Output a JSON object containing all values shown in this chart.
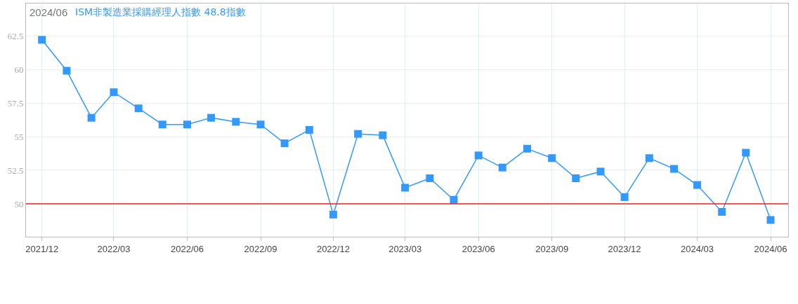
{
  "chart_data": {
    "type": "line",
    "title": "2024/06",
    "subtitle": "ISM非製造業採購經理人指數 48.8指數",
    "x": [
      "2021-12",
      "2022-01",
      "2022-02",
      "2022-03",
      "2022-04",
      "2022-05",
      "2022-06",
      "2022-07",
      "2022-08",
      "2022-09",
      "2022-10",
      "2022-11",
      "2022-12",
      "2023-01",
      "2023-02",
      "2023-03",
      "2023-04",
      "2023-05",
      "2023-06",
      "2023-07",
      "2023-08",
      "2023-09",
      "2023-10",
      "2023-11",
      "2023-12",
      "2024-01",
      "2024-02",
      "2024-03",
      "2024-04",
      "2024-05",
      "2024-06"
    ],
    "series": [
      {
        "color": "#3399ff",
        "values": [
          62.2,
          59.9,
          56.4,
          58.3,
          57.1,
          55.9,
          55.9,
          56.4,
          56.1,
          55.9,
          54.5,
          55.5,
          49.2,
          55.2,
          55.1,
          51.2,
          51.9,
          50.3,
          53.6,
          52.7,
          54.1,
          53.4,
          51.9,
          52.4,
          50.5,
          53.4,
          52.6,
          51.4,
          49.4,
          53.8,
          48.8
        ]
      }
    ],
    "xlim": [
      "2021-11-11",
      "2024-06-23"
    ],
    "xticks": [
      {
        "value": "2021-12",
        "label": "2021/12"
      },
      {
        "value": "2022-03",
        "label": "2022/03"
      },
      {
        "value": "2022-06",
        "label": "2022/06"
      },
      {
        "value": "2022-09",
        "label": "2022/09"
      },
      {
        "value": "2022-12",
        "label": "2022/12"
      },
      {
        "value": "2023-03",
        "label": "2023/03"
      },
      {
        "value": "2023-06",
        "label": "2023/06"
      },
      {
        "value": "2023-09",
        "label": "2023/09"
      },
      {
        "value": "2023-12",
        "label": "2023/12"
      },
      {
        "value": "2024-03",
        "label": "2024/03"
      },
      {
        "value": "2024-06",
        "label": "2024/06"
      }
    ],
    "ylim": [
      47.55,
      64.9
    ],
    "yticks": [
      50,
      52.5,
      55,
      57.5,
      60,
      62.5
    ],
    "ref_lines": [
      {
        "axis": "y",
        "value": 50,
        "color": "#ee2222"
      }
    ],
    "grid": true,
    "marker": "square",
    "line_style": "solid"
  }
}
